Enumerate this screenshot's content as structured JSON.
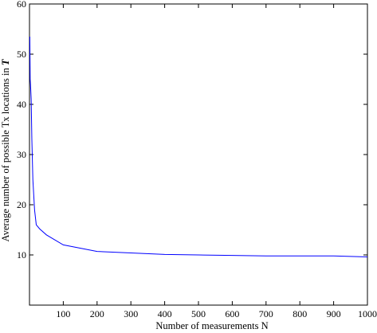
{
  "chart_data": {
    "type": "line",
    "title": "",
    "xlabel": "Number of measurements N",
    "ylabel_main": "Average number of possible Tx locations in ",
    "ylabel_symbol": "T",
    "xlim": [
      0,
      1000
    ],
    "ylim": [
      0,
      60
    ],
    "x_ticks": [
      100,
      200,
      300,
      400,
      500,
      600,
      700,
      800,
      900,
      1000
    ],
    "y_ticks": [
      10,
      20,
      30,
      40,
      50,
      60
    ],
    "x_tick_labels": [
      "100",
      "200",
      "300",
      "400",
      "500",
      "600",
      "700",
      "800",
      "900",
      "1000"
    ],
    "y_tick_labels": [
      "10",
      "20",
      "30",
      "40",
      "50",
      "60"
    ],
    "grid": false,
    "legend": "none",
    "series": [
      {
        "color": "#0000ff",
        "x": [
          1,
          2,
          3,
          5,
          7,
          10,
          15,
          20,
          30,
          50,
          100,
          200,
          300,
          400,
          500,
          600,
          700,
          800,
          900,
          1000
        ],
        "y": [
          53.5,
          45,
          44,
          41,
          33,
          25,
          19,
          16,
          15.2,
          14,
          12,
          10.7,
          10.4,
          10.1,
          10,
          9.9,
          9.8,
          9.8,
          9.8,
          9.6
        ]
      }
    ]
  }
}
